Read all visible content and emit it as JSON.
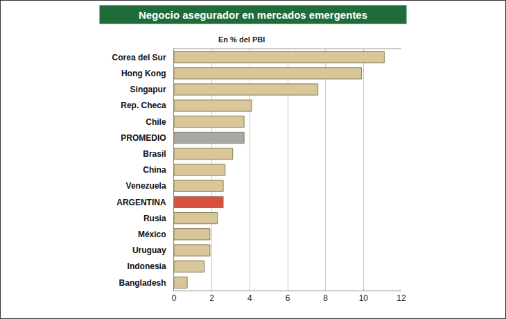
{
  "chart_data": {
    "type": "bar",
    "title": "Negocio asegurador en mercados emergentes",
    "subtitle": "En % del PBI",
    "orientation": "horizontal",
    "categories": [
      "Corea del Sur",
      "Hong Kong",
      "Singapur",
      "Rep. Checa",
      "Chile",
      "PROMEDIO",
      "Brasil",
      "China",
      "Venezuela",
      "ARGENTINA",
      "Rusia",
      "México",
      "Uruguay",
      "Indonesia",
      "Bangladesh"
    ],
    "values": [
      11.1,
      9.9,
      7.6,
      4.1,
      3.7,
      3.7,
      3.1,
      2.7,
      2.6,
      2.6,
      2.3,
      1.9,
      1.9,
      1.6,
      0.7
    ],
    "colors": [
      "#d8c79a",
      "#d8c79a",
      "#d8c79a",
      "#d8c79a",
      "#d8c79a",
      "#a8a8a8",
      "#d8c79a",
      "#d8c79a",
      "#d8c79a",
      "#d9503f",
      "#d8c79a",
      "#d8c79a",
      "#d8c79a",
      "#d8c79a",
      "#d8c79a"
    ],
    "xlim": [
      0,
      12
    ],
    "xticks": [
      0,
      2,
      4,
      6,
      8,
      10,
      12
    ],
    "grid": true
  }
}
